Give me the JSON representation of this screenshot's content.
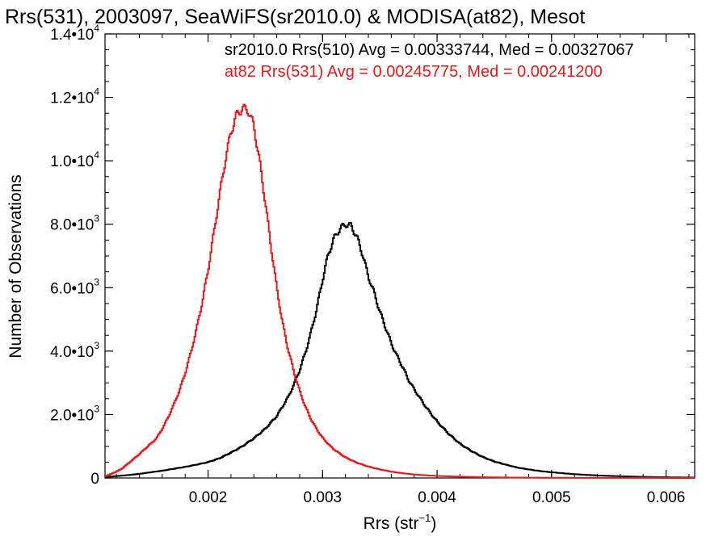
{
  "chart_data": {
    "type": "line",
    "title": "Rrs(531), 2003097, SeaWiFS(sr2010.0) & MODISA(at82), Mesot",
    "xlabel": "Rrs (str",
    "xlabel_sup": "−1",
    "xlabel_end": ")",
    "ylabel": "Number of Observations",
    "xlim": [
      0.0011,
      0.00625
    ],
    "ylim": [
      0,
      14000
    ],
    "x_ticks": [
      0.002,
      0.003,
      0.004,
      0.005,
      0.006
    ],
    "x_tick_labels": [
      "0.002",
      "0.003",
      "0.004",
      "0.005",
      "0.006"
    ],
    "y_ticks": [
      {
        "value": 0,
        "mant": "0",
        "exp": ""
      },
      {
        "value": 2000,
        "mant": "2.0•10",
        "exp": "3"
      },
      {
        "value": 4000,
        "mant": "4.0•10",
        "exp": "3"
      },
      {
        "value": 6000,
        "mant": "6.0•10",
        "exp": "3"
      },
      {
        "value": 8000,
        "mant": "8.0•10",
        "exp": "3"
      },
      {
        "value": 10000,
        "mant": "1.0•10",
        "exp": "4"
      },
      {
        "value": 12000,
        "mant": "1.2•10",
        "exp": "4"
      },
      {
        "value": 14000,
        "mant": "1.4•10",
        "exp": "4"
      }
    ],
    "grid": false,
    "legend_position": "top-right",
    "series": [
      {
        "name": "sr2010.0 Rrs(510) Avg = 0.00333744, Med = 0.00327067",
        "color": "#000000",
        "x": [
          0.0011,
          0.0012,
          0.0013,
          0.0014,
          0.0015,
          0.0016,
          0.0017,
          0.0018,
          0.0019,
          0.002,
          0.0021,
          0.0022,
          0.0023,
          0.0024,
          0.0025,
          0.0026,
          0.0027,
          0.00275,
          0.0028,
          0.00285,
          0.0029,
          0.00295,
          0.003,
          0.00305,
          0.0031,
          0.00315,
          0.0032,
          0.00325,
          0.0033,
          0.00335,
          0.0034,
          0.00345,
          0.0035,
          0.00355,
          0.0036,
          0.00365,
          0.0037,
          0.00375,
          0.0038,
          0.0039,
          0.004,
          0.0041,
          0.0042,
          0.0043,
          0.0044,
          0.0045,
          0.0046,
          0.0047,
          0.0048,
          0.0049,
          0.005,
          0.0052,
          0.0054,
          0.0056,
          0.0058,
          0.006,
          0.00625
        ],
        "y": [
          30,
          60,
          90,
          130,
          180,
          230,
          290,
          350,
          420,
          500,
          620,
          800,
          1000,
          1250,
          1550,
          1950,
          2550,
          2950,
          3400,
          3950,
          4600,
          5350,
          6250,
          7050,
          7550,
          7850,
          8000,
          7950,
          7600,
          7050,
          6350,
          5850,
          5250,
          4750,
          4250,
          3850,
          3500,
          3100,
          2800,
          2250,
          1780,
          1400,
          1080,
          850,
          660,
          520,
          420,
          330,
          270,
          220,
          180,
          120,
          80,
          55,
          35,
          22,
          12
        ]
      },
      {
        "name": "at82 Rrs(531) Avg = 0.00245775, Med = 0.00241200",
        "color": "#e41a1c",
        "x": [
          0.0011,
          0.00115,
          0.0012,
          0.00125,
          0.0013,
          0.00135,
          0.0014,
          0.00145,
          0.0015,
          0.00155,
          0.0016,
          0.00165,
          0.0017,
          0.00175,
          0.0018,
          0.00185,
          0.0019,
          0.00195,
          0.002,
          0.00205,
          0.0021,
          0.00215,
          0.0022,
          0.00225,
          0.0023,
          0.00235,
          0.0024,
          0.00245,
          0.0025,
          0.00255,
          0.0026,
          0.00265,
          0.0027,
          0.00275,
          0.0028,
          0.00285,
          0.0029,
          0.00295,
          0.003,
          0.00305,
          0.0031,
          0.0032,
          0.0033,
          0.0034,
          0.0035,
          0.0036,
          0.0037,
          0.0038,
          0.0039,
          0.004,
          0.0042,
          0.0044,
          0.0046,
          0.0048,
          0.005,
          0.0054,
          0.0058,
          0.00625
        ],
        "y": [
          50,
          120,
          200,
          300,
          450,
          600,
          750,
          920,
          1080,
          1250,
          1550,
          1900,
          2300,
          2750,
          3300,
          3950,
          4700,
          5550,
          6550,
          7700,
          8900,
          10000,
          10900,
          11450,
          11650,
          11600,
          11100,
          10000,
          8700,
          7300,
          6000,
          4900,
          4050,
          3350,
          2750,
          2250,
          1850,
          1530,
          1270,
          1070,
          900,
          650,
          480,
          360,
          270,
          200,
          150,
          110,
          85,
          65,
          40,
          25,
          15,
          10,
          6,
          3,
          2,
          1
        ]
      }
    ]
  }
}
